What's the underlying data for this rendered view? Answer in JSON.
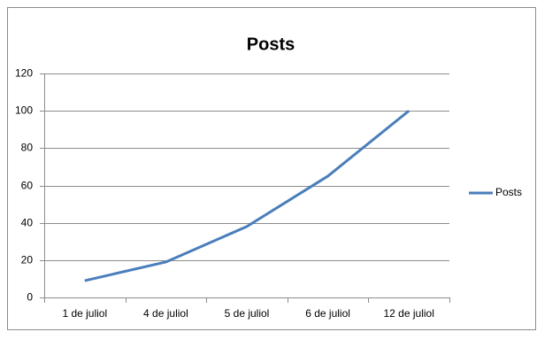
{
  "chart_data": {
    "type": "line",
    "title": "Posts",
    "categories": [
      "1 de juliol",
      "4 de juliol",
      "5 de juliol",
      "6 de juliol",
      "12 de juliol"
    ],
    "series": [
      {
        "name": "Posts",
        "color": "#4a7ebb",
        "values": [
          9,
          19,
          38,
          65,
          100
        ]
      }
    ],
    "ylim": [
      0,
      120
    ],
    "yticks": [
      0,
      20,
      40,
      60,
      80,
      100,
      120
    ],
    "grid": true,
    "legend": "right"
  }
}
